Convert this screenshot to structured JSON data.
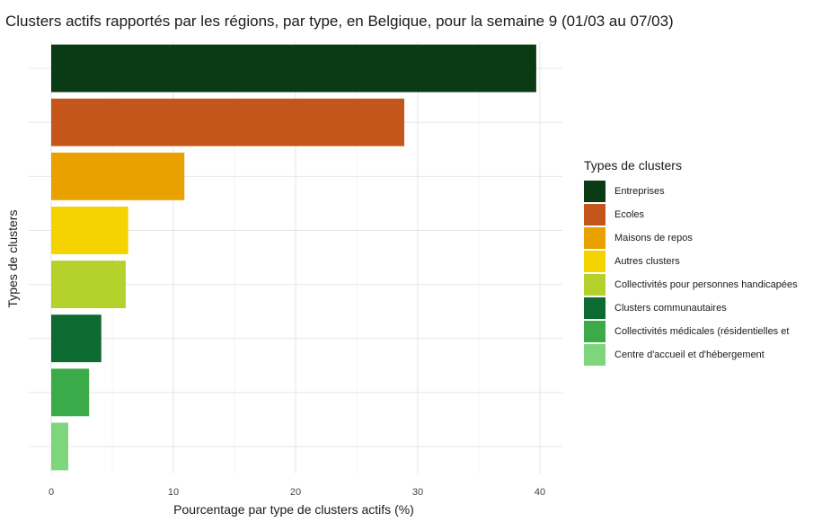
{
  "chart_data": {
    "type": "bar",
    "orientation": "horizontal",
    "title": "Clusters actifs rapportés par les régions, par type, en Belgique, pour la semaine 9 (01/03 au 07/03)",
    "xlabel": "Pourcentage par type de clusters actifs (%)",
    "ylabel": "Types de clusters",
    "xlim": [
      0,
      42
    ],
    "xticks": [
      "0",
      "10",
      "20",
      "30",
      "40"
    ],
    "grid": true,
    "legend_title": "Types de clusters",
    "legend_position": "right",
    "categories": [
      "Entreprises",
      "Ecoles",
      "Maisons de repos",
      "Autres clusters",
      "Collectivités pour personnes handicapées",
      "Clusters communautaires",
      "Collectivités médicales (résidentielles et",
      "Centre d'accueil et d'hébergement"
    ],
    "values": [
      39.7,
      28.9,
      10.9,
      6.3,
      6.1,
      4.1,
      3.1,
      1.4
    ],
    "colors": [
      "#0b3b14",
      "#c4551b",
      "#e9a100",
      "#f5d300",
      "#b5d22c",
      "#0d6a30",
      "#3aab48",
      "#7dd67c"
    ]
  }
}
